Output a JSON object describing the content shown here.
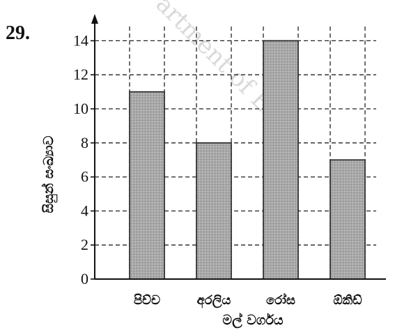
{
  "question_number": "29.",
  "watermark": "artment of Exa",
  "colors": {
    "bar_fill": "#a9a9a9",
    "bar_stroke": "#222222",
    "axis": "#111111",
    "grid": "#222222"
  },
  "chart_data": {
    "type": "bar",
    "title": "",
    "xlabel": "මල් වර්ගය",
    "ylabel": "සිසුන් සංඛ්‍යාව",
    "categories": [
      "පිච්ච",
      "අරලිය",
      "රෝස",
      "ඕකිඩ්"
    ],
    "values": [
      11,
      8,
      14,
      7
    ],
    "ylim": [
      0,
      15
    ],
    "yticks": [
      0,
      2,
      4,
      6,
      8,
      10,
      12,
      14
    ],
    "grid": true,
    "grid_style": "dashed",
    "legend": "none"
  }
}
